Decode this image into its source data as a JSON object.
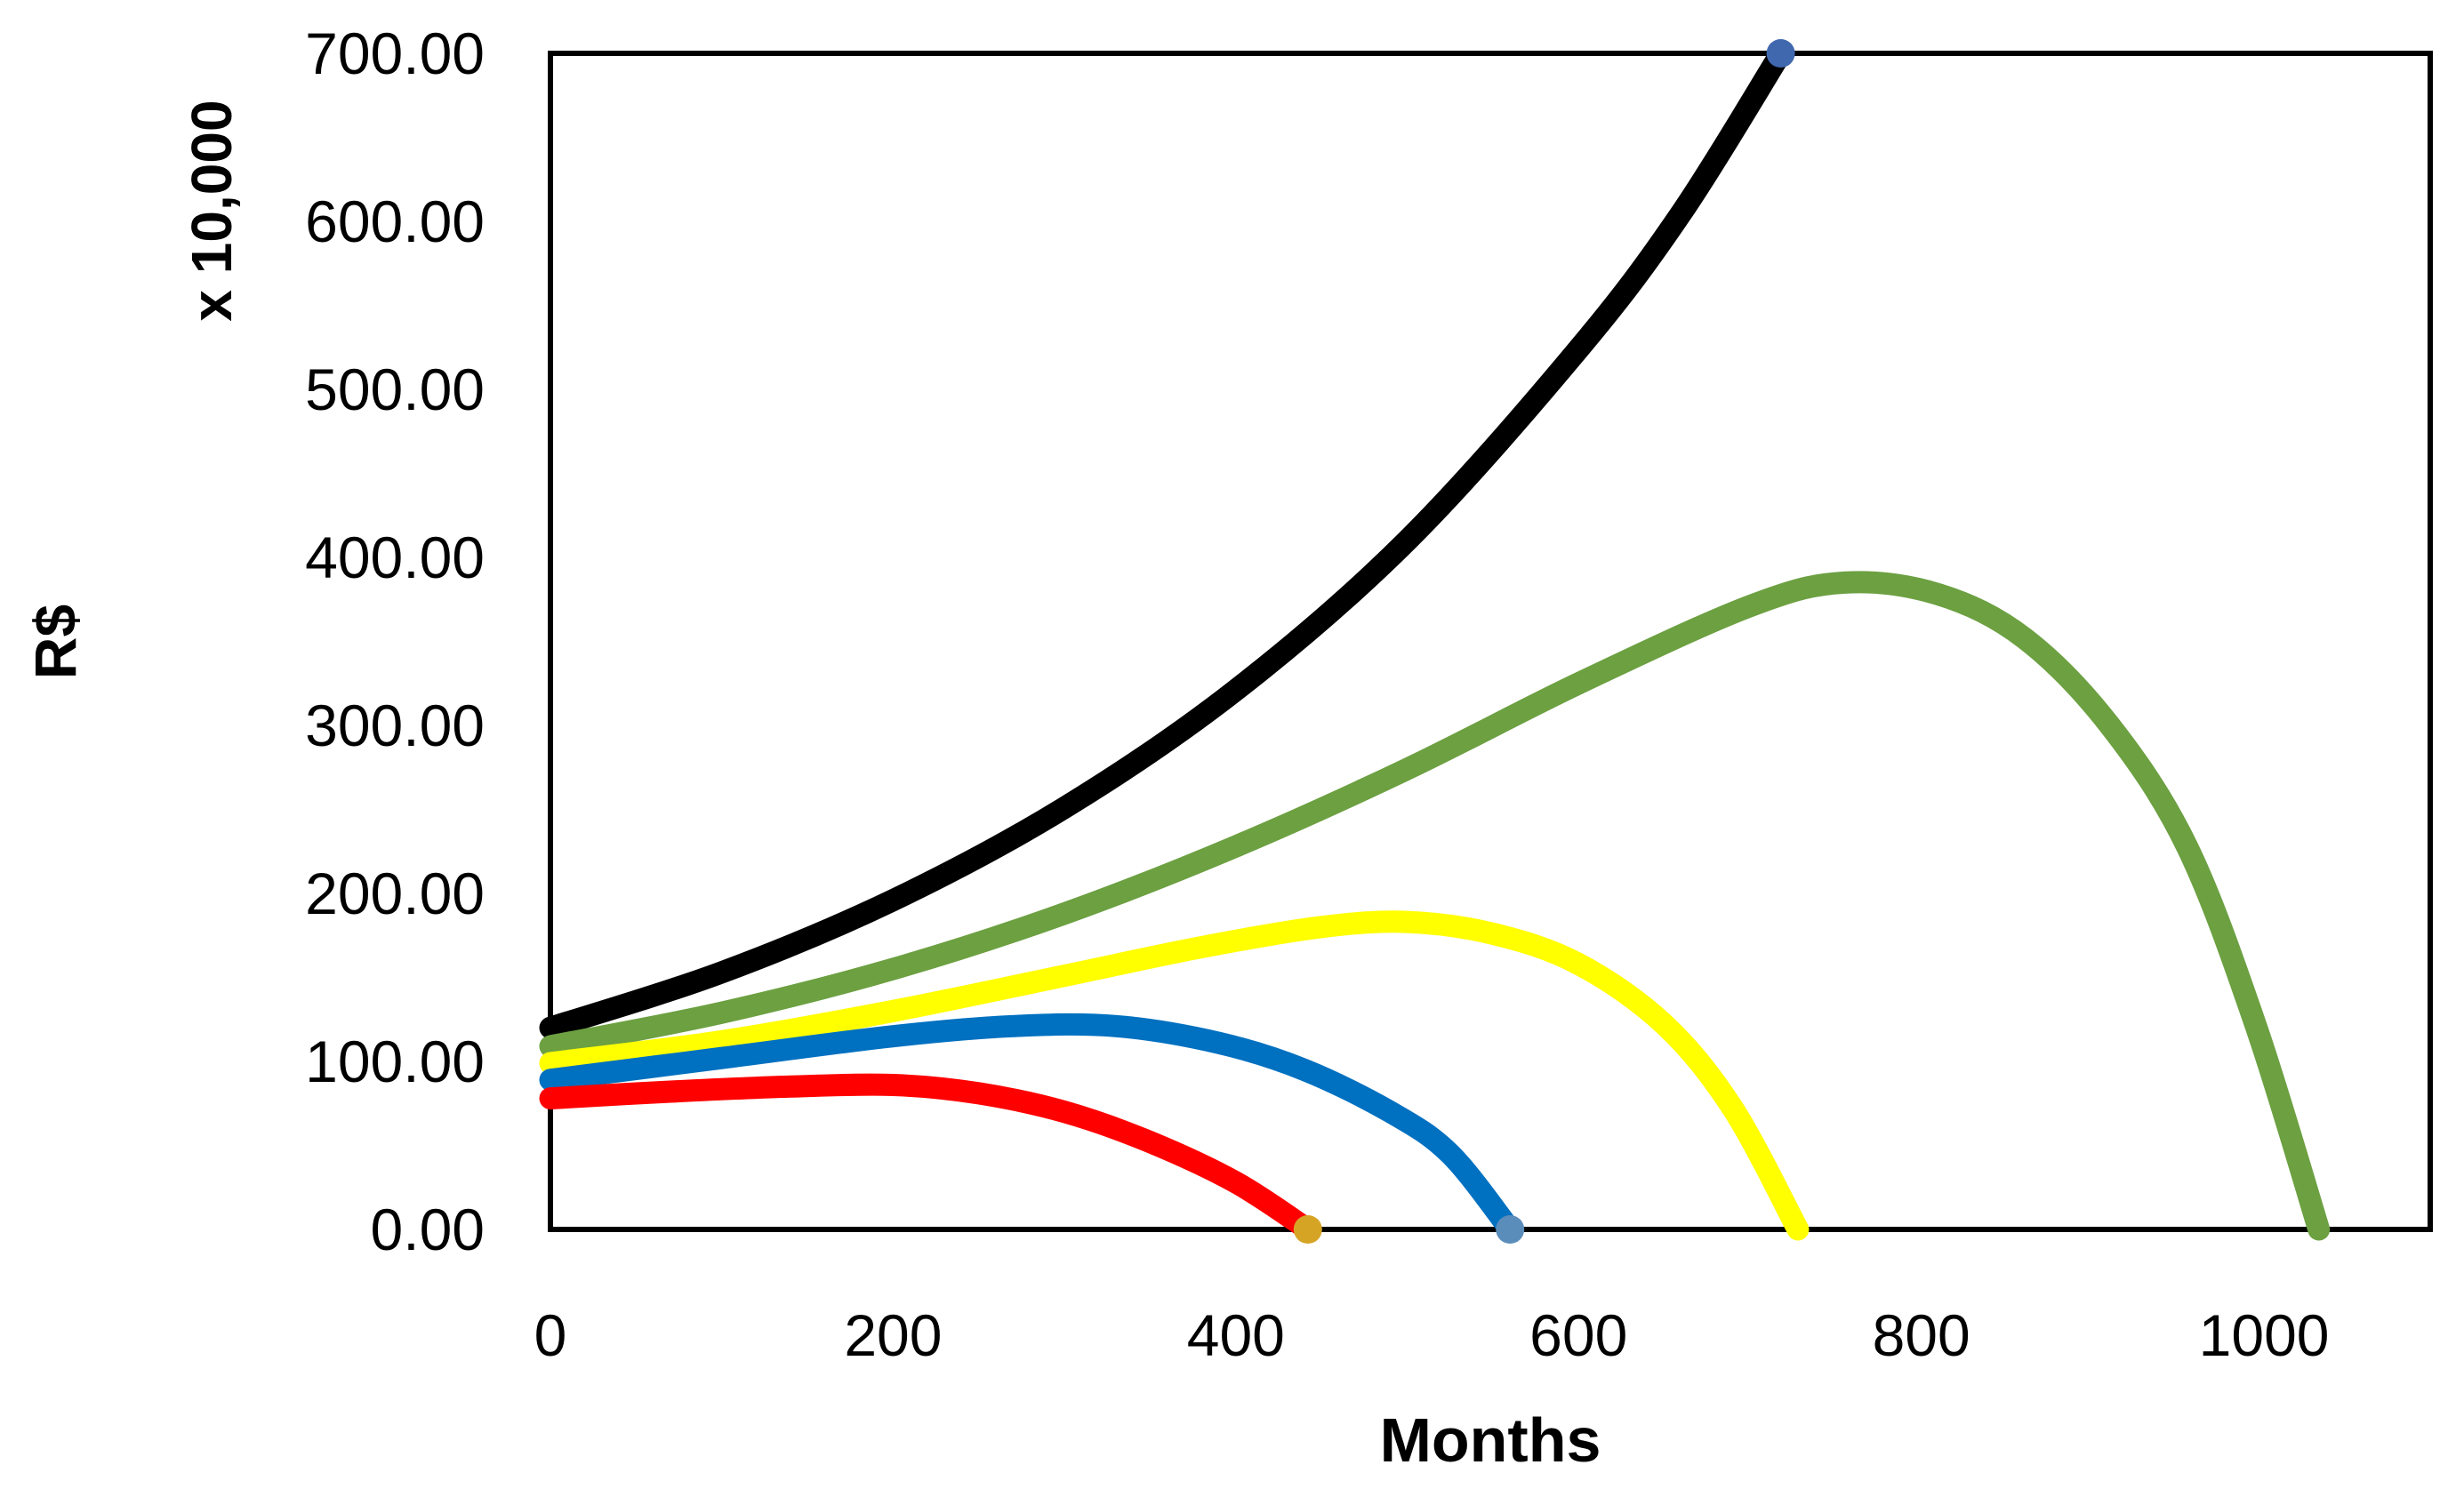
{
  "page": {
    "background_color": "#FFFFFF"
  },
  "chart_data": {
    "type": "line",
    "title": "",
    "xlabel": "Months",
    "ylabel": "R$",
    "y_units_label": "x 10,000",
    "grid": false,
    "legend_position": "none",
    "axis_color": "#000000",
    "plot_background": "#FFFFFF",
    "xlim": [
      0,
      1097
    ],
    "ylim": [
      0,
      700
    ],
    "x_ticks": [
      {
        "value": 0,
        "label": "0"
      },
      {
        "value": 200,
        "label": "200"
      },
      {
        "value": 400,
        "label": "400"
      },
      {
        "value": 600,
        "label": "600"
      },
      {
        "value": 800,
        "label": "800"
      },
      {
        "value": 1000,
        "label": "1000"
      }
    ],
    "y_ticks": [
      {
        "value": 0,
        "label": "0.00"
      },
      {
        "value": 100,
        "label": "100.00"
      },
      {
        "value": 200,
        "label": "200.00"
      },
      {
        "value": 300,
        "label": "300.00"
      },
      {
        "value": 400,
        "label": "400.00"
      },
      {
        "value": 500,
        "label": "500.00"
      },
      {
        "value": 600,
        "label": "600.00"
      },
      {
        "value": 700,
        "label": "700.00"
      }
    ],
    "series": [
      {
        "name": "black-exponential-growth",
        "color": "#000000",
        "end_marker_color": "#4068AE",
        "points": [
          [
            0,
            120
          ],
          [
            100,
            153
          ],
          [
            200,
            196
          ],
          [
            300,
            251
          ],
          [
            400,
            321
          ],
          [
            500,
            410
          ],
          [
            600,
            524
          ],
          [
            660,
            605
          ],
          [
            718,
            700
          ]
        ]
      },
      {
        "name": "green-curve",
        "color": "#6CA041",
        "end_marker_color": null,
        "points": [
          [
            0,
            109
          ],
          [
            100,
            129
          ],
          [
            200,
            155
          ],
          [
            300,
            188
          ],
          [
            400,
            228
          ],
          [
            500,
            274
          ],
          [
            600,
            325
          ],
          [
            700,
            371
          ],
          [
            755,
            385
          ],
          [
            810,
            378
          ],
          [
            860,
            352
          ],
          [
            910,
            300
          ],
          [
            955,
            228
          ],
          [
            995,
            122
          ],
          [
            1032,
            0
          ]
        ]
      },
      {
        "name": "yellow-curve",
        "color": "#FFFF00",
        "end_marker_color": null,
        "points": [
          [
            0,
            99
          ],
          [
            100,
            112
          ],
          [
            200,
            130
          ],
          [
            300,
            151
          ],
          [
            380,
            168
          ],
          [
            450,
            180
          ],
          [
            500,
            183
          ],
          [
            550,
            176
          ],
          [
            600,
            158
          ],
          [
            650,
            122
          ],
          [
            690,
            72
          ],
          [
            728,
            0
          ]
        ]
      },
      {
        "name": "blue-curve",
        "color": "#0070C0",
        "end_marker_color": "#5B8DBB",
        "points": [
          [
            0,
            89
          ],
          [
            100,
            102
          ],
          [
            200,
            115
          ],
          [
            270,
            121
          ],
          [
            330,
            121
          ],
          [
            390,
            111
          ],
          [
            440,
            95
          ],
          [
            490,
            70
          ],
          [
            525,
            45
          ],
          [
            560,
            0
          ]
        ]
      },
      {
        "name": "red-curve",
        "color": "#FF0000",
        "end_marker_color": "#D6A425",
        "points": [
          [
            0,
            78
          ],
          [
            70,
            82
          ],
          [
            140,
            85
          ],
          [
            200,
            86
          ],
          [
            250,
            81
          ],
          [
            300,
            70
          ],
          [
            350,
            52
          ],
          [
            400,
            28
          ],
          [
            442,
            0
          ]
        ]
      }
    ]
  }
}
